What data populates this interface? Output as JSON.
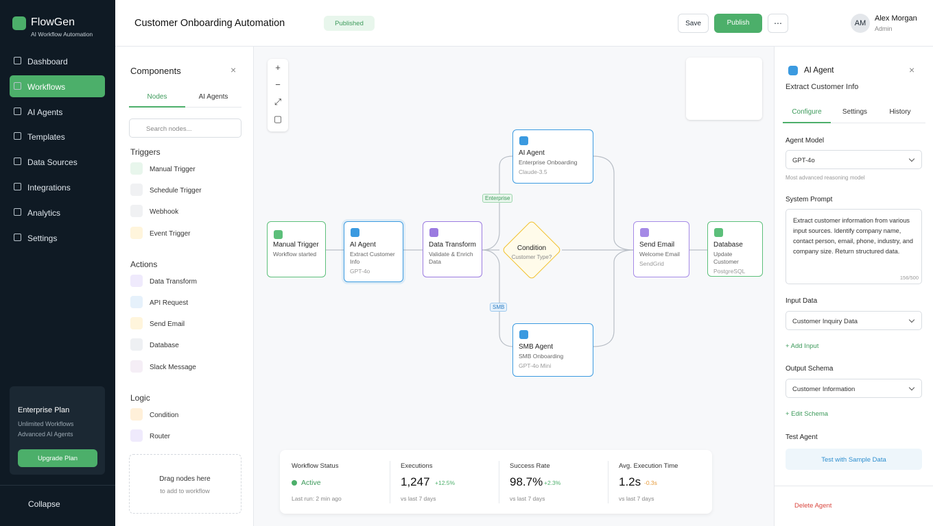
{
  "sidebar": {
    "brand": "FlowGen",
    "tagline": "AI Workflow Automation",
    "nav": [
      "Dashboard",
      "Workflows",
      "AI Agents",
      "Templates",
      "Data Sources",
      "Integrations",
      "Analytics",
      "Settings"
    ],
    "plan": {
      "title": "Enterprise Plan",
      "lines": [
        "Unlimited Workflows",
        "Advanced AI Agents"
      ],
      "button": "Upgrade Plan"
    },
    "collapse": "Collapse"
  },
  "header": {
    "title": "Customer Onboarding Automation",
    "status": "Published",
    "save": "Save",
    "publish": "Publish",
    "initials": "AM",
    "user": "Alex Morgan",
    "role": "Admin"
  },
  "components": {
    "title": "Components",
    "tabs": [
      "Nodes",
      "AI Agents"
    ],
    "search": "Search nodes...",
    "groups": [
      {
        "name": "Triggers",
        "items": [
          "Manual Trigger",
          "Schedule Trigger",
          "Webhook",
          "Event Trigger"
        ]
      },
      {
        "name": "Actions",
        "items": [
          "Data Transform",
          "API Request",
          "Send Email",
          "Database",
          "Slack Message"
        ]
      },
      {
        "name": "Logic",
        "items": [
          "Condition",
          "Router"
        ]
      }
    ],
    "drop": [
      "Drag nodes here",
      "to add to workflow"
    ]
  },
  "canvas": {
    "nodes": [
      {
        "title": "Manual Trigger",
        "subtitle": "Workflow started"
      },
      {
        "title": "AI Agent",
        "subtitle": "Extract Customer Info",
        "detail": "GPT-4o"
      },
      {
        "title": "Data Transform",
        "subtitle": "Validate & Enrich Data"
      },
      {
        "title": "Condition",
        "subtitle": "Customer Type?"
      },
      {
        "title": "AI Agent",
        "subtitle": "Enterprise Onboarding",
        "detail": "Claude-3.5"
      },
      {
        "title": "SMB Agent",
        "subtitle": "SMB Onboarding",
        "detail": "GPT-4o Mini"
      },
      {
        "title": "Send Email",
        "subtitle": "Welcome Email",
        "detail": "SendGrid"
      },
      {
        "title": "Database",
        "subtitle": "Update Customer",
        "detail": "PostgreSQL"
      }
    ],
    "edge_labels": [
      "Enterprise",
      "SMB"
    ]
  },
  "stats": [
    {
      "label": "Workflow Status",
      "value": "Active",
      "note": "Last run: 2 min ago"
    },
    {
      "label": "Executions",
      "value": "1,247",
      "change": "+12.5%",
      "note": "vs last 7 days"
    },
    {
      "label": "Success Rate",
      "value": "98.7%",
      "change": "+2.3%",
      "note": "vs last 7 days"
    },
    {
      "label": "Avg. Execution Time",
      "value": "1.2s",
      "change": "-0.3s",
      "note": "vs last 7 days"
    }
  ],
  "panel": {
    "title": "AI Agent",
    "subtitle": "Extract Customer Info",
    "tabs": [
      "Configure",
      "Settings",
      "History"
    ],
    "model_label": "Agent Model",
    "model": "GPT-4o",
    "model_hint": "Most advanced reasoning model",
    "prompt_label": "System Prompt",
    "prompt": "Extract customer information from various input sources. Identify company name, contact person, email, phone, industry, and company size. Return structured data.",
    "prompt_count": "156/500",
    "input_label": "Input Data",
    "input": "Customer Inquiry Data",
    "add_input": "+ Add Input",
    "output_label": "Output Schema",
    "output": "Customer Information",
    "edit_schema": "+ Edit Schema",
    "test_label": "Test Agent",
    "test_button": "Test with Sample Data",
    "delete": "Delete Agent"
  }
}
